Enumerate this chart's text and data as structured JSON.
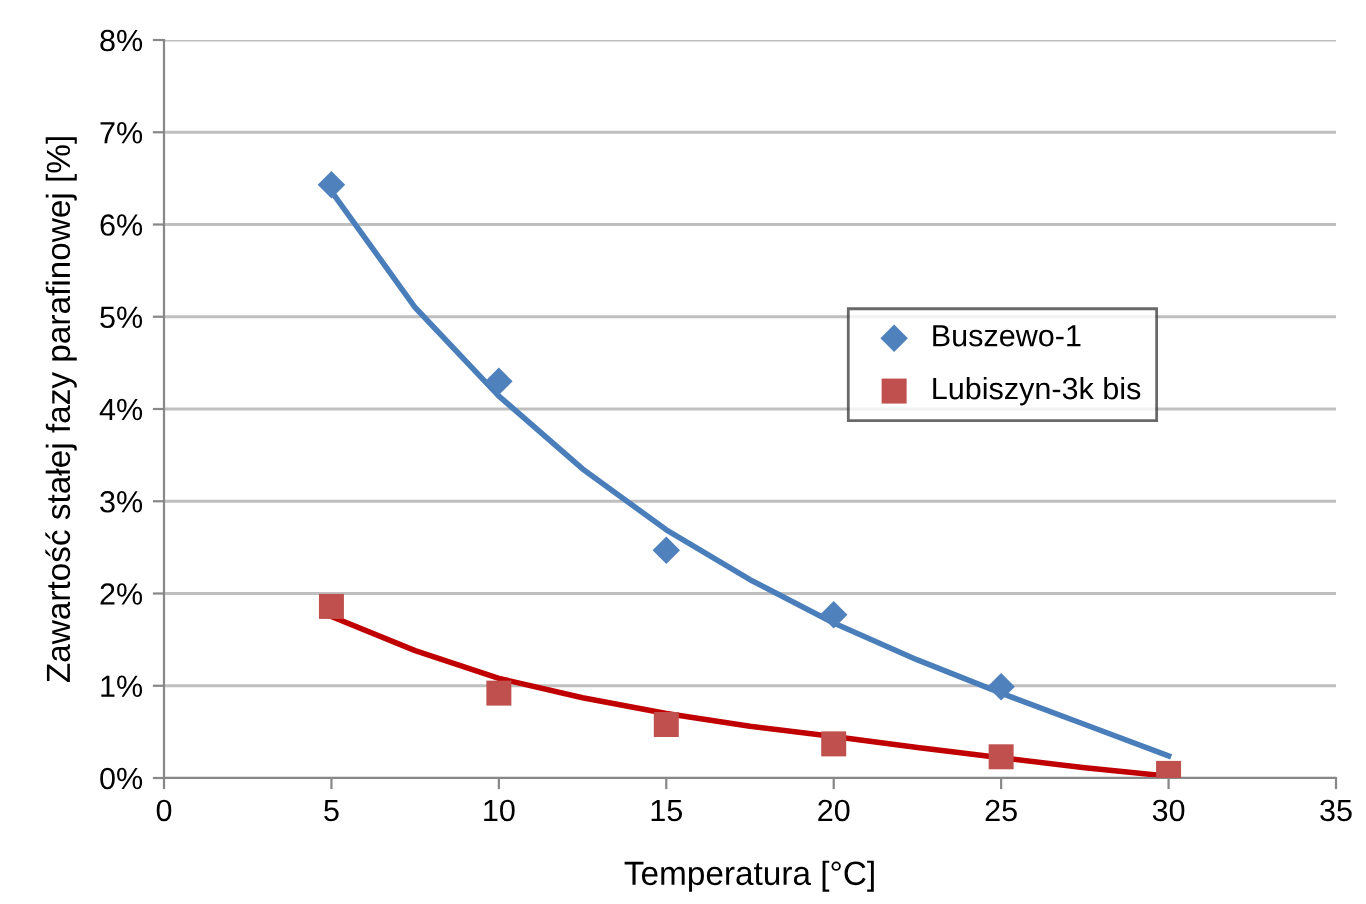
{
  "chart_data": {
    "type": "scatter",
    "xlabel": "Temperatura [°C]",
    "ylabel": "Zawartość stałej fazy parafinowej [%]",
    "x": [
      5,
      10,
      15,
      20,
      25,
      30
    ],
    "series": [
      {
        "name": "Buszewo-1",
        "color": "#4f81bd",
        "marker": "diamond",
        "values": [
          6.43,
          4.3,
          2.47,
          1.77,
          0.99,
          null
        ]
      },
      {
        "name": "Lubiszyn-3k bis",
        "color": "#c0504d",
        "marker": "square",
        "values": [
          1.86,
          0.92,
          0.58,
          0.37,
          0.23,
          0.05
        ]
      },
      {
        "type": "line",
        "color": "#4a7ebb",
        "marker": "none",
        "x": [
          5,
          7.5,
          10,
          12.5,
          15,
          17.5,
          20,
          22.5,
          25,
          27.5,
          30
        ],
        "values": [
          6.36,
          5.1,
          4.14,
          3.35,
          2.69,
          2.15,
          1.68,
          1.28,
          0.92,
          0.58,
          0.24
        ]
      },
      {
        "type": "line",
        "color": "#c00000",
        "marker": "none",
        "x": [
          5,
          7.5,
          10,
          12.5,
          15,
          17.5,
          20,
          22.5,
          25,
          27.5,
          30
        ],
        "values": [
          1.75,
          1.38,
          1.08,
          0.87,
          0.7,
          0.56,
          0.45,
          0.33,
          0.22,
          0.11,
          0.02
        ]
      }
    ],
    "xlim": [
      0,
      35
    ],
    "xticks": [
      0,
      5,
      10,
      15,
      20,
      25,
      30,
      35
    ],
    "ylim": [
      0,
      8
    ],
    "yticks": [
      {
        "value": 0,
        "label": "0%"
      },
      {
        "value": 1,
        "label": "1%"
      },
      {
        "value": 2,
        "label": "2%"
      },
      {
        "value": 3,
        "label": "3%"
      },
      {
        "value": 4,
        "label": "4%"
      },
      {
        "value": 5,
        "label": "5%"
      },
      {
        "value": 6,
        "label": "6%"
      },
      {
        "value": 7,
        "label": "7%"
      },
      {
        "value": 8,
        "label": "8%"
      }
    ],
    "grid": "y",
    "legend": "right",
    "line_style": "solid"
  }
}
